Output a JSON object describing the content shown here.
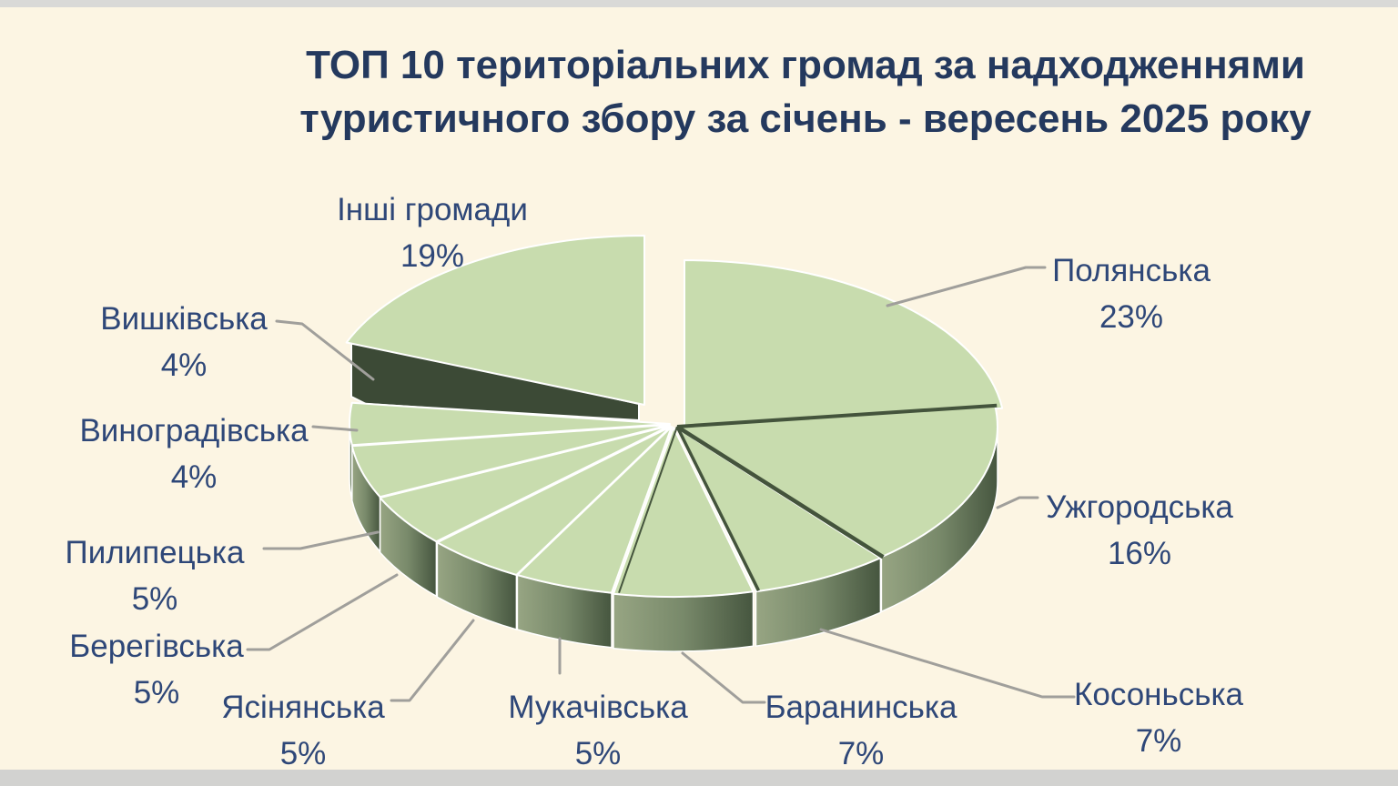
{
  "title": {
    "line1": "ТОП 10 територіальних громад за надходженнями",
    "line2": "туристичного збору за січень - вересень 2025 року"
  },
  "chart_data": {
    "type": "pie",
    "style": "3d-exploded-pie",
    "title": "ТОП 10 територіальних громад за надходженнями туристичного збору за січень - вересень 2025 року",
    "unit": "%",
    "start_angle_deg": 0,
    "direction": "clockwise",
    "legend_position": "callout-labels",
    "slices": [
      {
        "label": "Полянська",
        "value": 23,
        "pct_label": "23%"
      },
      {
        "label": "Ужгородська",
        "value": 16,
        "pct_label": "16%"
      },
      {
        "label": "Косоньська",
        "value": 7,
        "pct_label": "7%"
      },
      {
        "label": "Баранинська",
        "value": 7,
        "pct_label": "7%"
      },
      {
        "label": "Мукачівська",
        "value": 5,
        "pct_label": "5%"
      },
      {
        "label": "Ясінянська",
        "value": 5,
        "pct_label": "5%"
      },
      {
        "label": "Берегівська",
        "value": 5,
        "pct_label": "5%"
      },
      {
        "label": "Пилипецька",
        "value": 5,
        "pct_label": "5%"
      },
      {
        "label": "Виноградівська",
        "value": 4,
        "pct_label": "4%"
      },
      {
        "label": "Вишківська",
        "value": 4,
        "pct_label": "4%",
        "exploded": true
      },
      {
        "label": "Інші громади",
        "value": 19,
        "pct_label": "19%"
      }
    ]
  },
  "colors": {
    "background": "#fcf5e3",
    "title_text": "#24395e",
    "label_text": "#2e4778",
    "pie_top": "#c8dcae",
    "pie_side_light": "#97a583",
    "pie_side_mid": "#78896a",
    "pie_side_dark": "#46563f",
    "exploded_side": "#3c4a36",
    "separator_dark": "#44543c",
    "leader_line": "#a09f9b",
    "slice_stroke": "#ffffff"
  }
}
